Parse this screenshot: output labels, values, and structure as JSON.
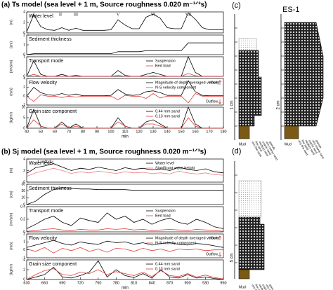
{
  "chart_data": [
    {
      "type": "line",
      "figure_title": "(a) Ts model (sea level + 1 m, Source roughness 0.020 m⁻¹ᐟ³s)",
      "title": "Water level",
      "y_label": "(m)",
      "x": [
        40,
        45,
        50,
        55,
        60,
        65,
        70,
        75,
        80,
        85,
        90,
        95,
        100,
        105,
        110,
        115,
        120,
        125,
        130,
        135,
        140,
        145,
        150,
        155,
        160,
        165,
        170,
        175,
        180
      ],
      "xlim": [
        40,
        180
      ],
      "ylim": [
        0,
        4
      ],
      "yticks": [
        0,
        2,
        4
      ],
      "series": [
        {
          "color": "#000000",
          "values": [
            0.2,
            3.5,
            1.2,
            0.6,
            0.5,
            1.0,
            0.5,
            0.9,
            0.5,
            0.5,
            0.5,
            0.5,
            0.6,
            2.5,
            1.5,
            0.8,
            0.8,
            3.0,
            3.6,
            2.8,
            1.0,
            0.8,
            0.8,
            3.8,
            2.6,
            1.0,
            0.6,
            0.6,
            0.6
          ]
        }
      ],
      "annotations": [
        {
          "text": "I",
          "x": 45
        },
        {
          "text": "II",
          "x": 64
        },
        {
          "text": "III",
          "x": 75
        },
        {
          "text": "V",
          "x": 105
        },
        {
          "text": "VI",
          "x": 130
        },
        {
          "text": "VII",
          "x": 155
        }
      ]
    },
    {
      "type": "line",
      "title": "Sediment thickness",
      "y_label": "(cm)",
      "x": [
        40,
        45,
        50,
        55,
        60,
        65,
        70,
        75,
        80,
        85,
        90,
        95,
        100,
        105,
        110,
        115,
        120,
        125,
        130,
        135,
        140,
        145,
        150,
        155,
        160,
        165,
        170,
        175,
        180
      ],
      "xlim": [
        40,
        180
      ],
      "ylim": [
        0,
        2
      ],
      "yticks": [
        0,
        1,
        2
      ],
      "series": [
        {
          "color": "#000000",
          "values": [
            0,
            0.1,
            0.1,
            0.1,
            0.1,
            0.1,
            0.1,
            0.1,
            0.1,
            0.1,
            0.1,
            0.1,
            0.1,
            0.3,
            0.3,
            0.3,
            0.3,
            0.4,
            0.4,
            0.4,
            0.4,
            0.4,
            0.4,
            1.2,
            1.2,
            1.2,
            1.2,
            1.2,
            1.2
          ]
        }
      ]
    },
    {
      "type": "line",
      "title": "Transport mode",
      "y_label": "(m³/s/m)",
      "x": [
        40,
        45,
        50,
        55,
        60,
        65,
        70,
        75,
        80,
        85,
        90,
        95,
        100,
        105,
        110,
        115,
        120,
        125,
        130,
        135,
        140,
        145,
        150,
        155,
        160,
        165,
        170,
        175,
        180
      ],
      "xlim": [
        40,
        180
      ],
      "ylim": [
        0,
        1
      ],
      "yticks": [
        0,
        1
      ],
      "series": [
        {
          "name": "Suspension",
          "color": "#000000",
          "values": [
            0,
            0.8,
            0.1,
            0,
            0,
            0.1,
            0,
            0.05,
            0,
            0,
            0,
            0,
            0,
            0.3,
            0.05,
            0,
            0,
            0.1,
            0.2,
            0.1,
            0,
            0,
            0,
            1.0,
            0.2,
            0,
            0,
            0,
            0
          ]
        },
        {
          "name": "Bed load",
          "color": "#e03c3c",
          "values": [
            0,
            0.1,
            0,
            0,
            0,
            0,
            0,
            0,
            0,
            0,
            0,
            0,
            0,
            0.05,
            0,
            0,
            0,
            0,
            0.03,
            0,
            0,
            0,
            0,
            0.15,
            0.03,
            0,
            0,
            0,
            0
          ]
        }
      ]
    },
    {
      "type": "line",
      "title": "Flow velocity",
      "y_label": "(m/s)",
      "inflow_label": "Inflow",
      "outflow_label": "Outflow",
      "x": [
        40,
        45,
        50,
        55,
        60,
        65,
        70,
        75,
        80,
        85,
        90,
        95,
        100,
        105,
        110,
        115,
        120,
        125,
        130,
        135,
        140,
        145,
        150,
        155,
        160,
        165,
        170,
        175,
        180
      ],
      "xlim": [
        40,
        180
      ],
      "ylim": [
        -2,
        4
      ],
      "yticks": [
        -2,
        0,
        2,
        4
      ],
      "series": [
        {
          "name": "Magnitude of depth averaged velocity",
          "color": "#000000",
          "values": [
            0,
            2.0,
            0.8,
            0.3,
            0.2,
            0.6,
            0.2,
            0.5,
            0.1,
            0.1,
            0.1,
            0.1,
            0.2,
            1.5,
            0.5,
            0.2,
            0.3,
            1.0,
            1.2,
            0.8,
            0.2,
            0.2,
            0.2,
            3.5,
            1.0,
            0.2,
            0.1,
            0.1,
            0.1
          ]
        },
        {
          "name": "N-S velocity component",
          "color": "#e03c3c",
          "values": [
            0,
            -1.2,
            0.3,
            0,
            0,
            -0.3,
            0,
            -0.2,
            0,
            0,
            0,
            0,
            0,
            -0.8,
            0.2,
            0,
            0,
            -0.5,
            0.6,
            -0.4,
            0,
            0,
            0,
            -1.5,
            0.6,
            0,
            0,
            0,
            0
          ]
        }
      ]
    },
    {
      "type": "line",
      "title": "Grain size component",
      "y_label": "(kg/m³)",
      "x_label": "min",
      "x": [
        40,
        45,
        50,
        55,
        60,
        65,
        70,
        75,
        80,
        85,
        90,
        95,
        100,
        105,
        110,
        115,
        120,
        125,
        130,
        135,
        140,
        145,
        150,
        155,
        160,
        165,
        170,
        175,
        180
      ],
      "xlim": [
        40,
        180
      ],
      "xticks": [
        40,
        50,
        60,
        70,
        80,
        90,
        100,
        110,
        120,
        130,
        140,
        150,
        160,
        170,
        180
      ],
      "ylim": [
        0,
        10
      ],
      "yticks": [
        0,
        5,
        10
      ],
      "series": [
        {
          "name": "0.44 mm sand",
          "color": "#000000",
          "values": [
            0,
            9,
            1,
            0,
            0,
            3,
            0,
            2,
            0,
            0,
            0,
            0,
            0,
            5,
            1,
            0,
            0,
            3,
            4,
            2,
            0,
            0,
            0,
            10,
            2,
            0,
            0,
            0,
            0
          ]
        },
        {
          "name": "0.13 mm sand",
          "color": "#e03c3c",
          "values": [
            0,
            4,
            1,
            0,
            0,
            2,
            0,
            1,
            0,
            0,
            0,
            0,
            0,
            3,
            1,
            0,
            0,
            2,
            2,
            1,
            0,
            0,
            0,
            5,
            1,
            0,
            0,
            0,
            0
          ]
        }
      ]
    },
    {
      "type": "line",
      "figure_title": "(b) Sj model (sea level + 1 m, Source roughness 0.020 m⁻¹ᐟ³s)",
      "title": "Water level",
      "y_label": "(m)",
      "x": [
        630,
        645,
        660,
        675,
        690,
        705,
        720,
        735,
        750,
        765,
        780,
        795,
        810,
        825,
        840,
        855,
        870,
        885,
        900,
        915,
        930,
        945,
        960
      ],
      "xlim": [
        630,
        960
      ],
      "ylim": [
        0,
        4
      ],
      "yticks": [
        0,
        2,
        4
      ],
      "series": [
        {
          "name": "Water level",
          "color": "#000000",
          "values": [
            1.5,
            2.5,
            2.8,
            3.2,
            2.6,
            2.0,
            2.4,
            2.2,
            2.6,
            2.3,
            2.0,
            2.5,
            2.2,
            2.4,
            2.1,
            2.3,
            2.0,
            2.6,
            2.2,
            2.0,
            2.3,
            1.8,
            1.6
          ]
        },
        {
          "name": "Significant wave height",
          "color": "#f08080",
          "values": [
            1.0,
            1.6,
            2.0,
            2.4,
            2.0,
            1.5,
            1.8,
            1.6,
            1.9,
            1.7,
            1.5,
            1.8,
            1.6,
            1.7,
            1.5,
            1.6,
            1.4,
            1.9,
            1.6,
            1.4,
            1.6,
            1.3,
            1.2
          ]
        }
      ],
      "annotations": [
        {
          "text": "Landfall",
          "x": 660
        }
      ]
    },
    {
      "type": "line",
      "title": "Sediment thickness",
      "y_label": "(cm)",
      "x": [
        630,
        645,
        660,
        675,
        690,
        705,
        720,
        735,
        750,
        765,
        780,
        795,
        810,
        825,
        840,
        855,
        870,
        885,
        900,
        915,
        930,
        945,
        960
      ],
      "xlim": [
        630,
        960
      ],
      "ylim": [
        0,
        30
      ],
      "yticks": [
        0,
        10,
        20,
        30
      ],
      "series": [
        {
          "color": "#000000",
          "values": [
            0,
            5,
            15,
            22,
            25,
            24,
            23,
            23,
            22,
            22,
            22,
            22,
            21,
            21,
            21,
            21,
            21,
            21,
            21,
            21,
            21,
            21,
            21
          ]
        }
      ]
    },
    {
      "type": "line",
      "title": "Transport mode",
      "y_label": "(m³/s/m)",
      "x": [
        630,
        645,
        660,
        675,
        690,
        705,
        720,
        735,
        750,
        765,
        780,
        795,
        810,
        825,
        840,
        855,
        870,
        885,
        900,
        915,
        930,
        945,
        960
      ],
      "xlim": [
        630,
        960
      ],
      "ylim": [
        0,
        0.4
      ],
      "yticks": [
        0,
        0.2,
        0.4
      ],
      "series": [
        {
          "name": "Suspension",
          "color": "#000000",
          "values": [
            0.05,
            0.12,
            0.2,
            0.25,
            0.15,
            0.1,
            0.22,
            0.18,
            0.15,
            0.3,
            0.2,
            0.25,
            0.15,
            0.2,
            0.12,
            0.18,
            0.22,
            0.15,
            0.12,
            0.2,
            0.15,
            0.08,
            0.05
          ]
        },
        {
          "name": "Bed load",
          "color": "#e03c3c",
          "values": [
            0.01,
            0.02,
            0.04,
            0.05,
            0.03,
            0.02,
            0.04,
            0.03,
            0.03,
            0.05,
            0.04,
            0.05,
            0.03,
            0.04,
            0.02,
            0.03,
            0.04,
            0.03,
            0.02,
            0.04,
            0.03,
            0.02,
            0.01
          ]
        }
      ]
    },
    {
      "type": "line",
      "title": "Flow velocity",
      "y_label": "(m/s)",
      "inflow_label": "Inflow",
      "outflow_label": "Outflow",
      "x": [
        630,
        645,
        660,
        675,
        690,
        705,
        720,
        735,
        750,
        765,
        780,
        795,
        810,
        825,
        840,
        855,
        870,
        885,
        900,
        915,
        930,
        945,
        960
      ],
      "xlim": [
        630,
        960
      ],
      "ylim": [
        -1,
        2
      ],
      "yticks": [
        -1,
        0,
        1,
        2
      ],
      "series": [
        {
          "name": "Magnitude of depth averaged velocity",
          "color": "#000000",
          "values": [
            0.3,
            0.6,
            0.9,
            1.2,
            0.8,
            0.6,
            1.0,
            0.8,
            0.7,
            1.1,
            0.9,
            1.0,
            0.7,
            0.9,
            0.6,
            0.8,
            0.9,
            0.7,
            0.6,
            0.8,
            0.7,
            0.5,
            0.3
          ]
        },
        {
          "name": "N-S velocity component",
          "color": "#e03c3c",
          "values": [
            0.1,
            -0.2,
            0.3,
            -0.4,
            0.2,
            -0.1,
            0.3,
            -0.2,
            0.1,
            -0.3,
            0.2,
            0.1,
            -0.2,
            0.2,
            -0.1,
            0.1,
            -0.2,
            0.1,
            0.0,
            0.1,
            -0.1,
            0.0,
            0.0
          ]
        }
      ]
    },
    {
      "type": "line",
      "title": "Grain size component",
      "y_label": "(kg/m³)",
      "x_label": "min",
      "x": [
        630,
        645,
        660,
        675,
        690,
        705,
        720,
        735,
        750,
        765,
        780,
        795,
        810,
        825,
        840,
        855,
        870,
        885,
        900,
        915,
        930,
        945,
        960
      ],
      "xlim": [
        630,
        960
      ],
      "xticks": [
        630,
        660,
        690,
        720,
        750,
        780,
        810,
        840,
        870,
        900,
        930,
        960
      ],
      "ylim": [
        0,
        4
      ],
      "yticks": [
        0,
        2,
        4
      ],
      "series": [
        {
          "name": "0.44 mm sand",
          "color": "#000000",
          "values": [
            0,
            0.5,
            1.0,
            2.5,
            0.5,
            0.3,
            0.8,
            1.5,
            3.8,
            0.5,
            2.0,
            0.8,
            0.4,
            1.2,
            0.3,
            2.0,
            0.5,
            0.3,
            1.0,
            0.3,
            0.5,
            0.2,
            0
          ]
        },
        {
          "name": "0.13 mm sand",
          "color": "#e03c3c",
          "values": [
            0,
            1.0,
            1.8,
            2.2,
            1.0,
            0.8,
            1.5,
            1.2,
            2.0,
            1.0,
            1.6,
            1.2,
            0.8,
            1.5,
            0.6,
            1.8,
            0.8,
            0.6,
            1.2,
            0.5,
            0.9,
            0.4,
            0.1
          ]
        }
      ]
    }
  ],
  "columns": {
    "c_label": "(c)",
    "d_label": "(d)",
    "core_label": "ES-1",
    "scale_c": "1 cm",
    "scale_core": "2 cm",
    "scale_d": "5 cm",
    "grain_classes": [
      "Mud",
      "very fine sand",
      "fine sand",
      "medium sand",
      "coarse sand",
      "very coarse sand",
      "granule"
    ]
  }
}
